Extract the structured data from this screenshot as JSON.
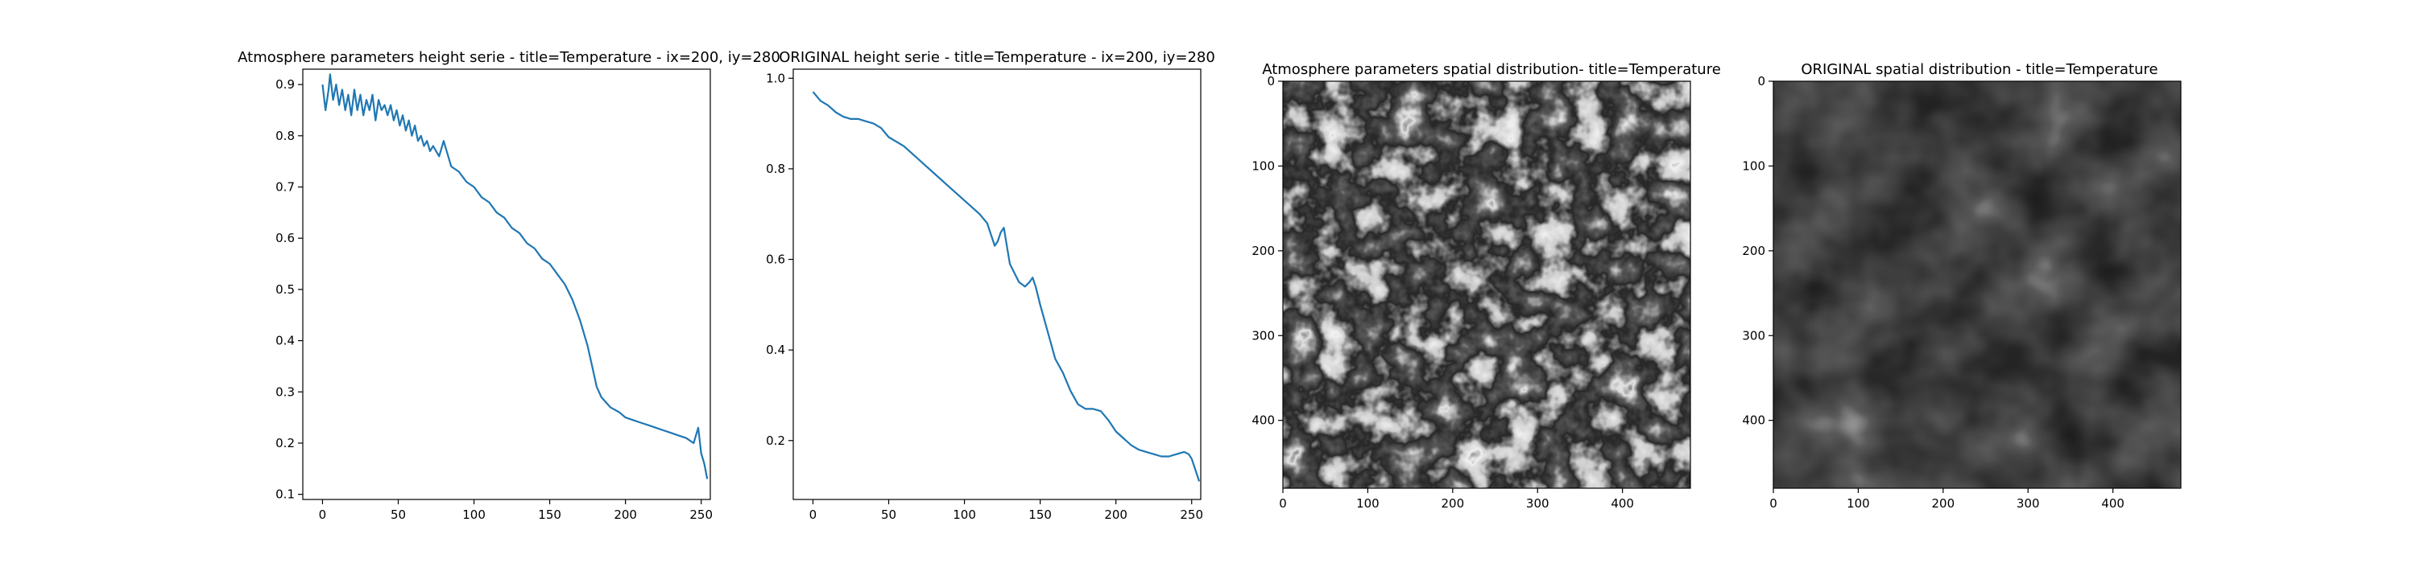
{
  "chart_data": [
    {
      "type": "line",
      "title": "Atmosphere parameters height serie - title=Temperature - ix=200, iy=280",
      "xlabel": "",
      "ylabel": "",
      "xlim": [
        -13,
        256
      ],
      "ylim": [
        0.09,
        0.93
      ],
      "xticks": [
        0,
        50,
        100,
        150,
        200,
        250
      ],
      "yticks": [
        0.1,
        0.2,
        0.3,
        0.4,
        0.5,
        0.6,
        0.7,
        0.8,
        0.9
      ],
      "grid": false,
      "line_color": "#1f77b4",
      "series": [
        {
          "x": [
            0,
            2,
            4,
            5,
            7,
            9,
            11,
            13,
            15,
            17,
            19,
            21,
            23,
            25,
            27,
            29,
            31,
            33,
            35,
            37,
            39,
            41,
            43,
            45,
            47,
            49,
            51,
            53,
            55,
            57,
            59,
            61,
            63,
            65,
            67,
            69,
            71,
            73,
            75,
            77,
            80,
            85,
            90,
            95,
            100,
            105,
            110,
            115,
            120,
            125,
            130,
            135,
            140,
            145,
            150,
            155,
            160,
            165,
            170,
            175,
            178,
            181,
            184,
            187,
            190,
            193,
            196,
            200,
            205,
            210,
            215,
            220,
            225,
            230,
            235,
            240,
            245,
            248,
            250,
            252,
            254
          ],
          "y": [
            0.9,
            0.85,
            0.89,
            0.92,
            0.87,
            0.9,
            0.86,
            0.89,
            0.85,
            0.88,
            0.84,
            0.89,
            0.85,
            0.88,
            0.84,
            0.87,
            0.85,
            0.88,
            0.83,
            0.87,
            0.85,
            0.86,
            0.84,
            0.86,
            0.83,
            0.85,
            0.82,
            0.84,
            0.81,
            0.83,
            0.8,
            0.82,
            0.79,
            0.8,
            0.78,
            0.79,
            0.77,
            0.78,
            0.77,
            0.76,
            0.79,
            0.74,
            0.73,
            0.71,
            0.7,
            0.68,
            0.67,
            0.65,
            0.64,
            0.62,
            0.61,
            0.59,
            0.58,
            0.56,
            0.55,
            0.53,
            0.51,
            0.48,
            0.44,
            0.39,
            0.35,
            0.31,
            0.29,
            0.28,
            0.27,
            0.265,
            0.26,
            0.25,
            0.245,
            0.24,
            0.235,
            0.23,
            0.225,
            0.22,
            0.215,
            0.21,
            0.2,
            0.23,
            0.18,
            0.16,
            0.13
          ]
        }
      ]
    },
    {
      "type": "line",
      "title": "ORIGINAL height serie - title=Temperature - ix=200, iy=280",
      "xlabel": "",
      "ylabel": "",
      "xlim": [
        -13,
        256
      ],
      "ylim": [
        0.07,
        1.02
      ],
      "xticks": [
        0,
        50,
        100,
        150,
        200,
        250
      ],
      "yticks": [
        0.2,
        0.4,
        0.6,
        0.8,
        1.0
      ],
      "ytick_labels": [
        "0.2",
        "0.4",
        "0.6",
        "0.8",
        "1.0"
      ],
      "grid": false,
      "line_color": "#1f77b4",
      "series": [
        {
          "x": [
            0,
            5,
            10,
            15,
            20,
            25,
            30,
            35,
            40,
            45,
            50,
            60,
            70,
            80,
            90,
            100,
            110,
            115,
            118,
            120,
            122,
            124,
            126,
            128,
            130,
            133,
            136,
            140,
            143,
            145,
            147,
            150,
            155,
            160,
            165,
            170,
            175,
            180,
            185,
            190,
            195,
            200,
            205,
            210,
            215,
            220,
            225,
            230,
            235,
            240,
            245,
            248,
            250,
            252,
            255
          ],
          "y": [
            0.97,
            0.95,
            0.94,
            0.925,
            0.915,
            0.91,
            0.91,
            0.905,
            0.9,
            0.89,
            0.87,
            0.85,
            0.82,
            0.79,
            0.76,
            0.73,
            0.7,
            0.68,
            0.65,
            0.63,
            0.64,
            0.66,
            0.67,
            0.63,
            0.59,
            0.57,
            0.55,
            0.54,
            0.55,
            0.56,
            0.54,
            0.5,
            0.44,
            0.38,
            0.35,
            0.31,
            0.28,
            0.27,
            0.27,
            0.265,
            0.245,
            0.22,
            0.205,
            0.19,
            0.18,
            0.175,
            0.17,
            0.165,
            0.165,
            0.17,
            0.175,
            0.17,
            0.16,
            0.14,
            0.11
          ]
        }
      ]
    },
    {
      "type": "heatmap",
      "title": "Atmosphere parameters spatial distribution- title=Temperature",
      "colormap": "gray",
      "xlim": [
        0,
        480
      ],
      "ylim": [
        480,
        0
      ],
      "xticks": [
        0,
        100,
        200,
        300,
        400
      ],
      "yticks": [
        0,
        100,
        200,
        300,
        400
      ],
      "texture": "fine-filamentary"
    },
    {
      "type": "heatmap",
      "title": "ORIGINAL spatial distribution - title=Temperature",
      "colormap": "gray",
      "xlim": [
        0,
        480
      ],
      "ylim": [
        480,
        0
      ],
      "xticks": [
        0,
        100,
        200,
        300,
        400
      ],
      "yticks": [
        0,
        100,
        200,
        300,
        400
      ],
      "texture": "dark-granular"
    }
  ]
}
